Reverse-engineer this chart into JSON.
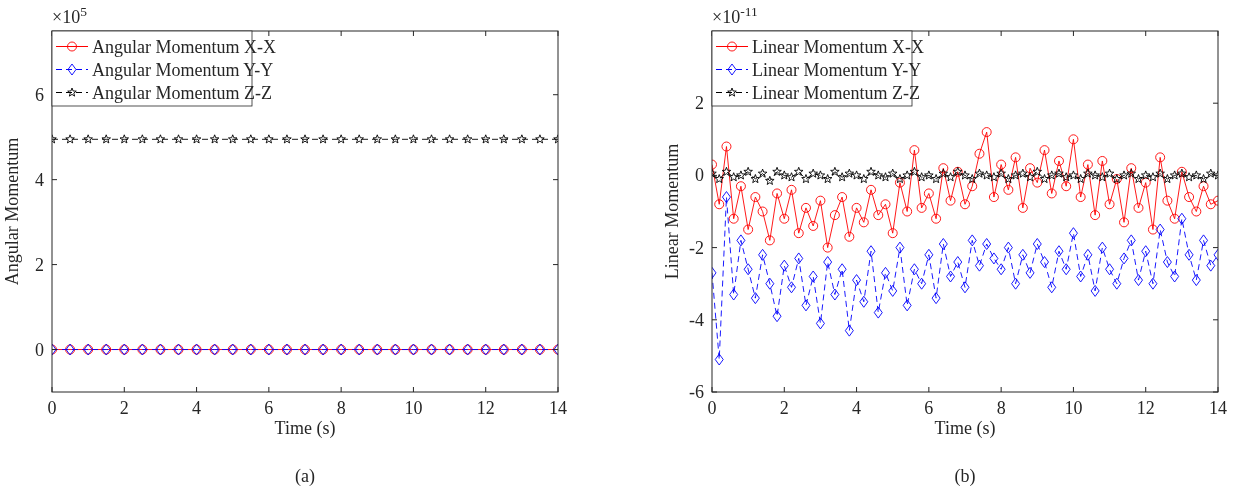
{
  "chart_data": [
    {
      "type": "line",
      "xlabel": "Time (s)",
      "ylabel": "Angular Momentum",
      "annotations": [
        "×10$^{5}$",
        "(a)"
      ],
      "xlim": [
        0,
        14
      ],
      "xticks": [
        0,
        2,
        4,
        6,
        8,
        10,
        12,
        14
      ],
      "ylim": [
        -1,
        7.5
      ],
      "yticks": [
        0,
        2,
        4,
        6
      ],
      "legend": "top left",
      "grid": false,
      "x": [
        0,
        0.5,
        1,
        1.5,
        2,
        2.5,
        3,
        3.5,
        4,
        4.5,
        5,
        5.5,
        6,
        6.5,
        7,
        7.5,
        8,
        8.5,
        9,
        9.5,
        10,
        10.5,
        11,
        11.5,
        12,
        12.5,
        13,
        13.5,
        14
      ],
      "series": [
        {
          "name": "Angular Momentum X-X",
          "color": "#ff0000",
          "marker": "circle",
          "line_style": "solid",
          "values": [
            0,
            0,
            0,
            0,
            0,
            0,
            0,
            0,
            0,
            0,
            0,
            0,
            0,
            0,
            0,
            0,
            0,
            0,
            0,
            0,
            0,
            0,
            0,
            0,
            0,
            0,
            0,
            0,
            0
          ]
        },
        {
          "name": "Angular Momentum Y-Y",
          "color": "#0000ff",
          "marker": "diamond",
          "line_style": "dashed",
          "values": [
            0,
            0,
            0,
            0,
            0,
            0,
            0,
            0,
            0,
            0,
            0,
            0,
            0,
            0,
            0,
            0,
            0,
            0,
            0,
            0,
            0,
            0,
            0,
            0,
            0,
            0,
            0,
            0,
            0
          ]
        },
        {
          "name": "Angular Momentum Z-Z",
          "color": "#000000",
          "marker": "star",
          "line_style": "dashed",
          "values": [
            4.95,
            4.95,
            4.95,
            4.95,
            4.95,
            4.95,
            4.95,
            4.95,
            4.95,
            4.95,
            4.95,
            4.95,
            4.95,
            4.95,
            4.95,
            4.95,
            4.95,
            4.95,
            4.95,
            4.95,
            4.95,
            4.95,
            4.95,
            4.95,
            4.95,
            4.95,
            4.95,
            4.95,
            4.95
          ]
        }
      ]
    },
    {
      "type": "line",
      "xlabel": "Time (s)",
      "ylabel": "Linear Momentum",
      "annotations": [
        "×10$^{-11}$",
        "(b)"
      ],
      "xlim": [
        0,
        14
      ],
      "xticks": [
        0,
        2,
        4,
        6,
        8,
        10,
        12,
        14
      ],
      "ylim": [
        -6,
        4
      ],
      "yticks": [
        -6,
        -4,
        -2,
        0,
        2
      ],
      "legend": "top left",
      "grid": false,
      "x": [
        0,
        0.2,
        0.4,
        0.6,
        0.8,
        1,
        1.2,
        1.4,
        1.6,
        1.8,
        2,
        2.2,
        2.4,
        2.6,
        2.8,
        3,
        3.2,
        3.4,
        3.6,
        3.8,
        4,
        4.2,
        4.4,
        4.6,
        4.8,
        5,
        5.2,
        5.4,
        5.6,
        5.8,
        6,
        6.2,
        6.4,
        6.6,
        6.8,
        7,
        7.2,
        7.4,
        7.6,
        7.8,
        8,
        8.2,
        8.4,
        8.6,
        8.8,
        9,
        9.2,
        9.4,
        9.6,
        9.8,
        10,
        10.2,
        10.4,
        10.6,
        10.8,
        11,
        11.2,
        11.4,
        11.6,
        11.8,
        12,
        12.2,
        12.4,
        12.6,
        12.8,
        13,
        13.2,
        13.4,
        13.6,
        13.8,
        14
      ],
      "series": [
        {
          "name": "Linear Momentum X-X",
          "color": "#ff0000",
          "marker": "circle",
          "line_style": "solid",
          "values": [
            0.3,
            -0.8,
            0.8,
            -1.2,
            -0.3,
            -1.5,
            -0.6,
            -1.0,
            -1.8,
            -0.5,
            -1.2,
            -0.4,
            -1.6,
            -0.9,
            -1.4,
            -0.7,
            -2.0,
            -1.1,
            -0.6,
            -1.7,
            -0.9,
            -1.3,
            -0.4,
            -1.1,
            -0.8,
            -1.6,
            -0.2,
            -1.0,
            0.7,
            -0.9,
            -0.5,
            -1.2,
            0.2,
            -0.7,
            0.1,
            -0.8,
            -0.3,
            0.6,
            1.2,
            -0.6,
            0.3,
            -0.4,
            0.5,
            -0.9,
            0.2,
            -0.2,
            0.7,
            -0.5,
            0.4,
            -0.3,
            1.0,
            -0.6,
            0.3,
            -1.1,
            0.4,
            -0.8,
            -0.1,
            -1.3,
            0.2,
            -0.9,
            -0.2,
            -1.5,
            0.5,
            -0.7,
            -1.2,
            0.1,
            -0.6,
            -1.0,
            -0.3,
            -0.8,
            -0.7
          ]
        },
        {
          "name": "Linear Momentum Y-Y",
          "color": "#0000ff",
          "marker": "diamond",
          "line_style": "dashed",
          "values": [
            -2.7,
            -5.1,
            -0.6,
            -3.3,
            -1.8,
            -2.6,
            -3.4,
            -2.2,
            -3.0,
            -3.9,
            -2.5,
            -3.1,
            -2.3,
            -3.6,
            -2.8,
            -4.1,
            -2.4,
            -3.3,
            -2.6,
            -4.3,
            -2.9,
            -3.5,
            -2.1,
            -3.8,
            -2.7,
            -3.2,
            -2.0,
            -3.6,
            -2.6,
            -3.0,
            -2.2,
            -3.4,
            -1.9,
            -2.8,
            -2.4,
            -3.1,
            -1.8,
            -2.5,
            -1.9,
            -2.3,
            -2.6,
            -2.0,
            -3.0,
            -2.2,
            -2.7,
            -1.9,
            -2.4,
            -3.1,
            -2.1,
            -2.6,
            -1.6,
            -2.8,
            -2.2,
            -3.2,
            -2.0,
            -2.6,
            -3.0,
            -2.3,
            -1.8,
            -2.9,
            -2.1,
            -3.0,
            -1.5,
            -2.4,
            -2.8,
            -1.2,
            -2.2,
            -2.9,
            -1.8,
            -2.5,
            -2.2
          ]
        },
        {
          "name": "Linear Momentum Z-Z",
          "color": "#000000",
          "marker": "star",
          "line_style": "dashed",
          "values": [
            0.05,
            -0.1,
            0.1,
            -0.05,
            0.0,
            0.1,
            -0.1,
            0.05,
            -0.15,
            0.1,
            0.0,
            -0.05,
            0.1,
            -0.1,
            0.05,
            0.0,
            -0.1,
            0.1,
            -0.05,
            0.05,
            0.0,
            -0.1,
            0.1,
            0.0,
            -0.05,
            0.05,
            -0.1,
            0.0,
            0.1,
            -0.05,
            0.0,
            -0.1,
            0.05,
            -0.05,
            0.1,
            0.0,
            -0.1,
            0.05,
            0.0,
            -0.05,
            0.05,
            -0.1,
            0.0,
            0.05,
            -0.05,
            0.1,
            -0.1,
            0.0,
            0.05,
            -0.05,
            0.0,
            -0.1,
            0.05,
            0.0,
            -0.05,
            0.05,
            -0.1,
            0.0,
            0.05,
            -0.1,
            0.0,
            -0.05,
            0.05,
            -0.1,
            0.0,
            0.05,
            -0.05,
            0.0,
            -0.1,
            0.05,
            0.0
          ]
        }
      ]
    }
  ]
}
